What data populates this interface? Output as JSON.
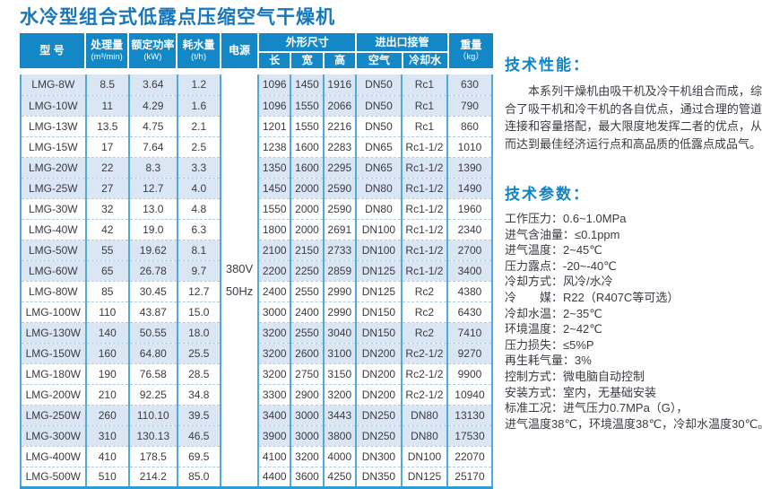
{
  "page": {
    "title": "水冷型组合式低露点压缩空气干燥机"
  },
  "colors": {
    "title_blue": "#1577BD",
    "header_bg": "#1488C7",
    "heading_blue": "#0F85C8",
    "row_shade": "#DAE6F4",
    "column_border": "#4FA9DB",
    "dash_border": "#AECBE4",
    "bottom_line": "#2F9CD8",
    "text_dark": "#3A3A42"
  },
  "table": {
    "header": {
      "model": "型 号",
      "capacity": "处理量",
      "capacity_unit": "(m³/min)",
      "power": "额定功率",
      "power_unit": "(kW)",
      "water": "耗水量",
      "water_unit": "(t/h)",
      "supply": "电源",
      "dimensions": "外形尺寸",
      "length": "长",
      "width": "宽",
      "height": "高",
      "connections": "进出口接管",
      "air": "空气",
      "cooling_water": "冷却水",
      "weight": "重量",
      "weight_unit": "（kg）"
    },
    "col_keys": [
      "model",
      "capacity",
      "power",
      "water",
      "length",
      "width",
      "height",
      "air",
      "cooling",
      "weight"
    ],
    "power_supply": [
      "380V",
      "50Hz"
    ],
    "rows": [
      [
        "LMG-8W",
        "8.5",
        "3.64",
        "1.2",
        "1096",
        "1450",
        "1916",
        "DN50",
        "Rc1",
        "630"
      ],
      [
        "LMG-10W",
        "11",
        "4.29",
        "1.6",
        "1096",
        "1550",
        "2066",
        "DN50",
        "Rc1",
        "790"
      ],
      [
        "LMG-13W",
        "13.5",
        "4.75",
        "2.1",
        "1201",
        "1550",
        "2216",
        "DN50",
        "Rc1",
        "860"
      ],
      [
        "LMG-15W",
        "17",
        "7.64",
        "2.5",
        "1238",
        "1600",
        "2283",
        "DN65",
        "Rc1-1/2",
        "1010"
      ],
      [
        "LMG-20W",
        "22",
        "8.3",
        "3.3",
        "1350",
        "1600",
        "2295",
        "DN65",
        "Rc1-1/2",
        "1390"
      ],
      [
        "LMG-25W",
        "27",
        "12.7",
        "4.0",
        "1450",
        "2000",
        "2590",
        "DN80",
        "Rc1-1/2",
        "1490"
      ],
      [
        "LMG-30W",
        "32",
        "13.0",
        "4.8",
        "1550",
        "2000",
        "2590",
        "DN80",
        "Rc1-1/2",
        "1960"
      ],
      [
        "LMG-40W",
        "42",
        "19.0",
        "6.3",
        "1800",
        "2000",
        "2691",
        "DN100",
        "Rc1-1/2",
        "2340"
      ],
      [
        "LMG-50W",
        "55",
        "19.62",
        "8.1",
        "2100",
        "2150",
        "2733",
        "DN100",
        "Rc1-1/2",
        "2700"
      ],
      [
        "LMG-60W",
        "65",
        "26.78",
        "9.7",
        "2200",
        "2250",
        "2859",
        "DN125",
        "Rc1-1/2",
        "3400"
      ],
      [
        "LMG-80W",
        "85",
        "30.45",
        "12.7",
        "2400",
        "2550",
        "2990",
        "DN125",
        "Rc2",
        "4380"
      ],
      [
        "LMG-100W",
        "110",
        "43.87",
        "15.0",
        "3000",
        "2400",
        "2990",
        "DN150",
        "Rc2",
        "6430"
      ],
      [
        "LMG-130W",
        "140",
        "50.55",
        "18.0",
        "3200",
        "2550",
        "3040",
        "DN150",
        "Rc2",
        "7410"
      ],
      [
        "LMG-150W",
        "160",
        "64.80",
        "25.5",
        "3200",
        "2600",
        "3100",
        "DN200",
        "Rc2-1/2",
        "9270"
      ],
      [
        "LMG-180W",
        "190",
        "76.58",
        "28.5",
        "3200",
        "2750",
        "3150",
        "DN200",
        "Rc2-1/2",
        "9900"
      ],
      [
        "LMG-200W",
        "210",
        "92.25",
        "34.8",
        "3300",
        "2900",
        "3200",
        "DN200",
        "Rc2-1/2",
        "10940"
      ],
      [
        "LMG-250W",
        "260",
        "110.10",
        "39.5",
        "3400",
        "3000",
        "3443",
        "DN250",
        "DN80",
        "13130"
      ],
      [
        "LMG-300W",
        "310",
        "130.13",
        "46.5",
        "3900",
        "3000",
        "3800",
        "DN250",
        "DN80",
        "17530"
      ],
      [
        "LMG-400W",
        "410",
        "178.5",
        "69.5",
        "4100",
        "3200",
        "4000",
        "DN300",
        "DN100",
        "22070"
      ],
      [
        "LMG-500W",
        "510",
        "214.2",
        "85.0",
        "4400",
        "3600",
        "4250",
        "DN350",
        "DN125",
        "25170"
      ]
    ]
  },
  "performance": {
    "heading": "技术性能：",
    "body": "本系列干燥机由吸干机及冷干机组合而成，综合了吸干机和冷干机的各自优点，通过合理的管道连接和容量搭配，最大限度地发挥二者的优点，从而达到最佳经济运行点和高品质的低露点成品气。"
  },
  "parameters": {
    "heading": "技术参数：",
    "items": [
      "工作压力：0.6~1.0MPa",
      "进气含油量：≤0.1ppm",
      "进气温度：2~45℃",
      "压力露点：-20~-40℃",
      "冷却方式：风冷/水冷",
      "冷　　媒：R22（R407C等可选）",
      "冷却水温：2~35℃",
      "环境温度：2~42℃",
      "压力损失：≤5%P",
      "再生耗气量：3%",
      "控制方式：微电脑自动控制",
      "安装方式：室内，无基础安装",
      "标准工况：进气压力0.7MPa（G），",
      "进气温度38℃，环境温度38℃，冷却水温度30℃。"
    ]
  }
}
